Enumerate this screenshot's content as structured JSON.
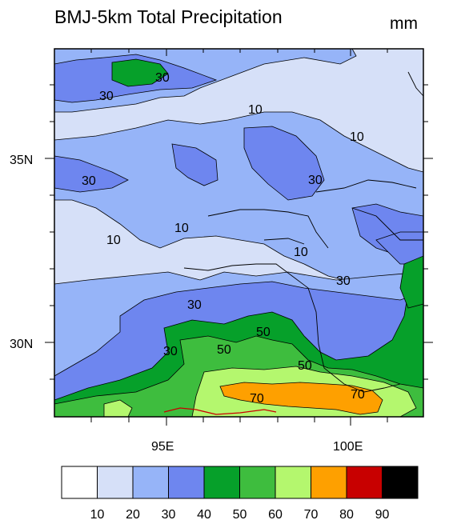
{
  "title": "BMJ-5km Total Precipitation",
  "units": "mm",
  "lat_labels": [
    "35N",
    "30N"
  ],
  "lon_labels": [
    "95E",
    "100E"
  ],
  "contour_labels": [
    "30",
    "30",
    "10",
    "10",
    "30",
    "30",
    "10",
    "10",
    "10",
    "30",
    "30",
    "50",
    "50",
    "30",
    "50",
    "70",
    "70"
  ],
  "colorbar": {
    "colors": [
      "#ffffff",
      "#d6e0f8",
      "#96b4f8",
      "#6e86ef",
      "#06a02a",
      "#3ebd3e",
      "#b4f76e",
      "#fea000",
      "#c80000",
      "#000000"
    ],
    "labels": [
      "10",
      "20",
      "30",
      "40",
      "50",
      "60",
      "70",
      "80",
      "90"
    ]
  }
}
